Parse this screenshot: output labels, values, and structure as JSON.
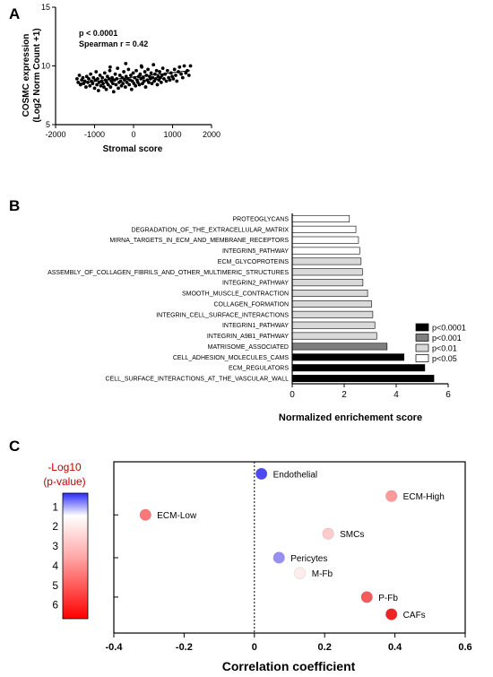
{
  "panels": {
    "a": "A",
    "b": "B",
    "c": "C"
  },
  "colors": {
    "significance": [
      "#000000",
      "#7f7f7f",
      "#d9d9d9",
      "#ffffff"
    ]
  },
  "chart_data": [
    {
      "type": "scatter",
      "xlabel": "Stromal score",
      "ylabel": [
        "COSMC expression",
        "(Log2 Norm Count +1)"
      ],
      "xlim": [
        -2000,
        2000
      ],
      "ylim": [
        5,
        15
      ],
      "xticks": [
        "-2000",
        "-1000",
        "0",
        "1000",
        "2000"
      ],
      "yticks": [
        "5",
        "10",
        "15"
      ],
      "annotations": [
        "p < 0.0001",
        "Spearman  r = 0.42"
      ],
      "trendline": {
        "x": [
          -1450,
          1450
        ],
        "y": [
          8.5,
          9.6
        ]
      },
      "points": [
        [
          -1450,
          8.9
        ],
        [
          -1420,
          8.6
        ],
        [
          -1390,
          9.2
        ],
        [
          -1360,
          8.4
        ],
        [
          -1330,
          8.8
        ],
        [
          -1300,
          9.0
        ],
        [
          -1280,
          8.5
        ],
        [
          -1250,
          8.7
        ],
        [
          -1220,
          8.2
        ],
        [
          -1200,
          9.1
        ],
        [
          -1170,
          8.6
        ],
        [
          -1150,
          8.9
        ],
        [
          -1120,
          8.3
        ],
        [
          -1100,
          9.3
        ],
        [
          -1080,
          8.7
        ],
        [
          -1050,
          8.5
        ],
        [
          -1030,
          9.0
        ],
        [
          -1000,
          8.1
        ],
        [
          -980,
          8.8
        ],
        [
          -960,
          9.5
        ],
        [
          -940,
          8.4
        ],
        [
          -920,
          8.9
        ],
        [
          -900,
          7.9
        ],
        [
          -880,
          8.6
        ],
        [
          -860,
          9.2
        ],
        [
          -840,
          8.3
        ],
        [
          -820,
          8.7
        ],
        [
          -800,
          9.0
        ],
        [
          -780,
          8.5
        ],
        [
          -760,
          8.2
        ],
        [
          -740,
          9.4
        ],
        [
          -720,
          8.8
        ],
        [
          -700,
          8.0
        ],
        [
          -690,
          8.6
        ],
        [
          -670,
          9.1
        ],
        [
          -650,
          8.4
        ],
        [
          -630,
          8.9
        ],
        [
          -610,
          9.6
        ],
        [
          -590,
          8.2
        ],
        [
          -570,
          8.7
        ],
        [
          -550,
          9.0
        ],
        [
          -530,
          8.5
        ],
        [
          -510,
          7.8
        ],
        [
          -490,
          8.8
        ],
        [
          -470,
          9.3
        ],
        [
          -450,
          8.4
        ],
        [
          -430,
          8.9
        ],
        [
          -410,
          9.8
        ],
        [
          -390,
          8.1
        ],
        [
          -370,
          8.6
        ],
        [
          -350,
          9.2
        ],
        [
          -330,
          8.7
        ],
        [
          -310,
          8.3
        ],
        [
          -290,
          9.0
        ],
        [
          -270,
          8.5
        ],
        [
          -250,
          9.5
        ],
        [
          -230,
          8.8
        ],
        [
          -210,
          8.2
        ],
        [
          -190,
          9.1
        ],
        [
          -170,
          8.6
        ],
        [
          -150,
          8.9
        ],
        [
          -130,
          9.7
        ],
        [
          -110,
          8.4
        ],
        [
          -90,
          8.8
        ],
        [
          -70,
          9.2
        ],
        [
          -50,
          8.0
        ],
        [
          -30,
          8.7
        ],
        [
          -10,
          9.4
        ],
        [
          10,
          8.5
        ],
        [
          30,
          9.0
        ],
        [
          50,
          8.3
        ],
        [
          70,
          9.6
        ],
        [
          90,
          8.8
        ],
        [
          110,
          8.6
        ],
        [
          130,
          9.1
        ],
        [
          150,
          8.4
        ],
        [
          170,
          9.3
        ],
        [
          190,
          8.9
        ],
        [
          210,
          9.9
        ],
        [
          230,
          8.5
        ],
        [
          250,
          9.0
        ],
        [
          270,
          8.7
        ],
        [
          290,
          9.5
        ],
        [
          310,
          8.2
        ],
        [
          330,
          9.2
        ],
        [
          350,
          8.8
        ],
        [
          370,
          9.7
        ],
        [
          390,
          8.6
        ],
        [
          410,
          9.1
        ],
        [
          430,
          8.9
        ],
        [
          450,
          9.4
        ],
        [
          470,
          8.5
        ],
        [
          490,
          9.0
        ],
        [
          510,
          10.1
        ],
        [
          530,
          8.7
        ],
        [
          550,
          9.3
        ],
        [
          570,
          8.9
        ],
        [
          590,
          9.6
        ],
        [
          610,
          8.4
        ],
        [
          630,
          9.1
        ],
        [
          650,
          8.8
        ],
        [
          670,
          9.5
        ],
        [
          690,
          9.0
        ],
        [
          710,
          8.6
        ],
        [
          730,
          9.2
        ],
        [
          750,
          9.8
        ],
        [
          780,
          8.9
        ],
        [
          810,
          9.3
        ],
        [
          840,
          8.7
        ],
        [
          870,
          9.6
        ],
        [
          900,
          9.0
        ],
        [
          930,
          8.8
        ],
        [
          960,
          9.4
        ],
        [
          990,
          9.1
        ],
        [
          1020,
          8.9
        ],
        [
          1050,
          9.7
        ],
        [
          1080,
          9.2
        ],
        [
          1110,
          8.7
        ],
        [
          1150,
          9.5
        ],
        [
          1180,
          9.9
        ],
        [
          1220,
          9.3
        ],
        [
          1260,
          9.0
        ],
        [
          1300,
          10.0
        ],
        [
          1340,
          9.4
        ],
        [
          1380,
          9.6
        ],
        [
          1420,
          9.2
        ],
        [
          1460,
          10.0
        ],
        [
          -600,
          9.9
        ],
        [
          -200,
          10.2
        ],
        [
          200,
          10.0
        ]
      ]
    },
    {
      "type": "bar",
      "orientation": "horizontal",
      "xlabel": "Normalized enrichement score",
      "xlim": [
        0,
        6
      ],
      "xticks": [
        "0",
        "2",
        "4",
        "6"
      ],
      "categories": [
        "PROTEOGLYCANS",
        "DEGRADATION_OF_THE_EXTRACELLULAR_MATRIX",
        "MIRNA_TARGETS_IN_ECM_AND_MEMBRANE_RECEPTORS",
        "INTEGRIN5_PATHWAY",
        "ECM_GLYCOPROTEINS",
        "ASSEMBLY_OF_COLLAGEN_FIBRILS_AND_OTHER_MULTIMERIC_STRUCTURES",
        "INTEGRIN2_PATHWAY",
        "SMOOTH_MUSCLE_CONTRACTION",
        "COLLAGEN_FORMATION",
        "INTEGRIN_CELL_SURFACE_INTERACTIONS",
        "INTEGRIN1_PATHWAY",
        "INTEGRIN_A9B1_PATHWAY",
        "MATRISOME_ASSOCIATED",
        "CELL_ADHESION_MOLECULES_CAMS",
        "ECM_REGULATORS",
        "CELL_SURFACE_INTERACTIONS_AT_THE_VASCULAR_WALL"
      ],
      "values": [
        2.2,
        2.45,
        2.55,
        2.6,
        2.65,
        2.7,
        2.72,
        2.9,
        3.05,
        3.1,
        3.18,
        3.25,
        3.65,
        4.3,
        5.1,
        5.45
      ],
      "significance": [
        3,
        3,
        3,
        3,
        2,
        2,
        2,
        2,
        2,
        2,
        2,
        2,
        1,
        0,
        0,
        0
      ],
      "legend": [
        "p<0.0001",
        "p<0.001",
        "p<0.01",
        "p<0.05"
      ],
      "legend_position": "right"
    },
    {
      "type": "scatter",
      "xlabel": "Correlation coefficient",
      "xlim": [
        -0.4,
        0.6
      ],
      "xticks": [
        "-0.4",
        "-0.2",
        "0",
        "0.2",
        "0.4",
        "0.6"
      ],
      "colorbar": {
        "title": [
          "-Log10",
          "(p-value)"
        ],
        "ticks": [
          "1",
          "2",
          "3",
          "4",
          "5",
          "6"
        ],
        "range": [
          0.3,
          6.7
        ]
      },
      "points": [
        {
          "label": "Endothelial",
          "x": 0.02,
          "y": 0.93,
          "logp": 0.5
        },
        {
          "label": "ECM-High",
          "x": 0.39,
          "y": 0.8,
          "logp": 3.4
        },
        {
          "label": "ECM-Low",
          "x": -0.31,
          "y": 0.69,
          "logp": 4.2
        },
        {
          "label": "SMCs",
          "x": 0.21,
          "y": 0.58,
          "logp": 2.3
        },
        {
          "label": "Pericytes",
          "x": 0.07,
          "y": 0.44,
          "logp": 0.9
        },
        {
          "label": "M-Fb",
          "x": 0.13,
          "y": 0.35,
          "logp": 1.5
        },
        {
          "label": "P-Fb",
          "x": 0.32,
          "y": 0.21,
          "logp": 4.9
        },
        {
          "label": "CAFs",
          "x": 0.39,
          "y": 0.11,
          "logp": 6.2
        }
      ]
    }
  ]
}
